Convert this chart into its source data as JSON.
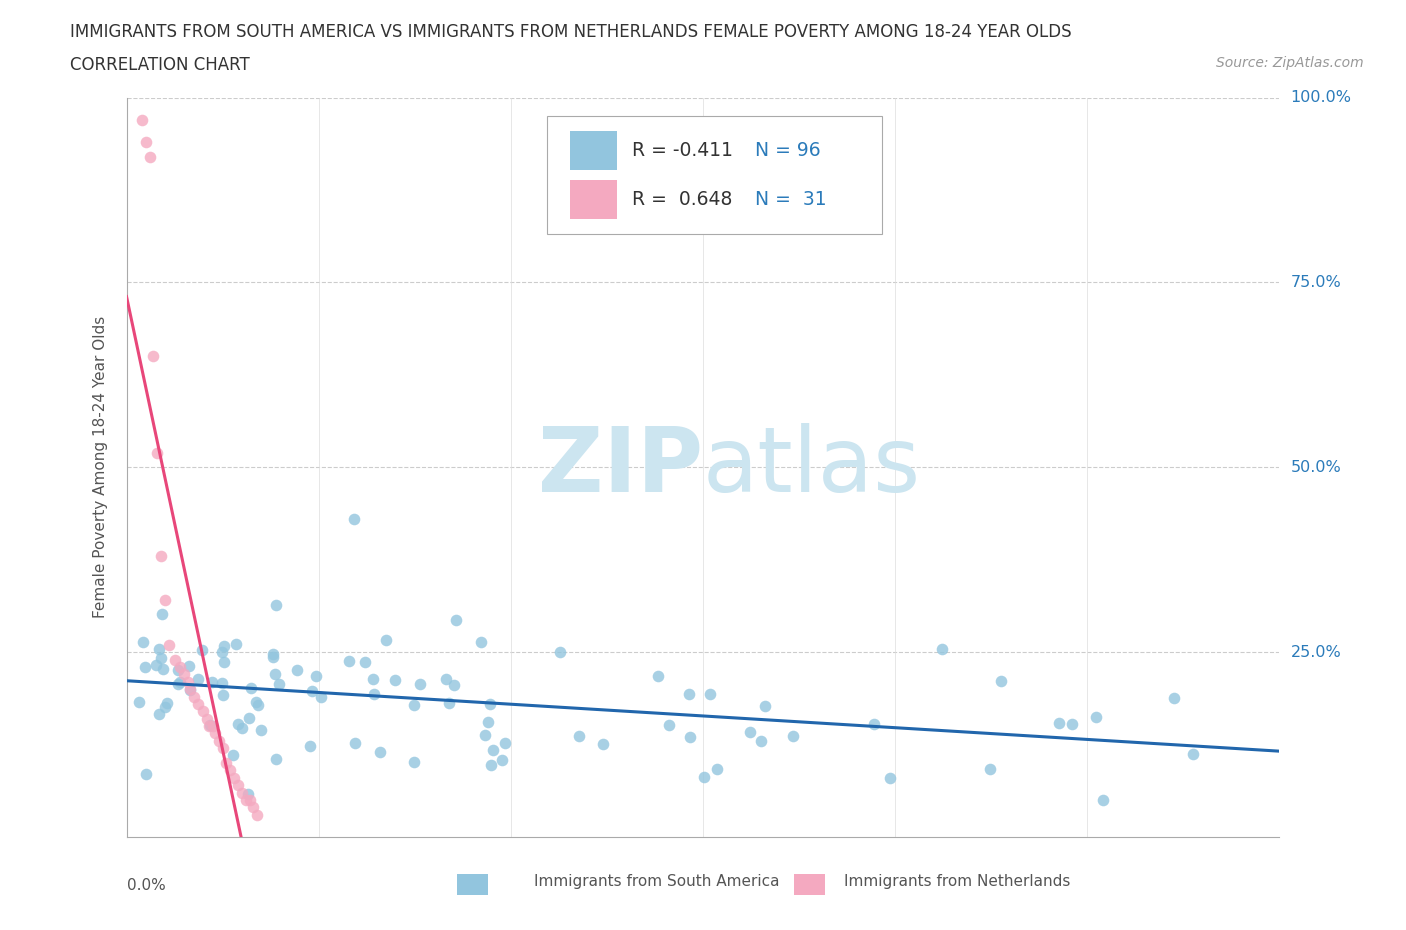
{
  "title_line1": "IMMIGRANTS FROM SOUTH AMERICA VS IMMIGRANTS FROM NETHERLANDS FEMALE POVERTY AMONG 18-24 YEAR OLDS",
  "title_line2": "CORRELATION CHART",
  "source": "Source: ZipAtlas.com",
  "ylabel": "Female Poverty Among 18-24 Year Olds",
  "xlim": [
    0,
    0.6
  ],
  "ylim": [
    0,
    1.0
  ],
  "yticks": [
    0.0,
    0.25,
    0.5,
    0.75,
    1.0
  ],
  "ytick_labels_right": [
    "",
    "25.0%",
    "50.0%",
    "75.0%",
    "100.0%"
  ],
  "color_blue": "#92c5de",
  "color_pink": "#f4a9c0",
  "color_trendline_blue": "#2166ac",
  "color_trendline_pink": "#e8477a",
  "color_text_blue": "#2b7bba",
  "watermark_text": "ZIPatlas",
  "watermark_color": "#cce5f0",
  "background_color": "#ffffff",
  "legend_text_color": "#2b7bba",
  "legend_r_color": "#333333"
}
